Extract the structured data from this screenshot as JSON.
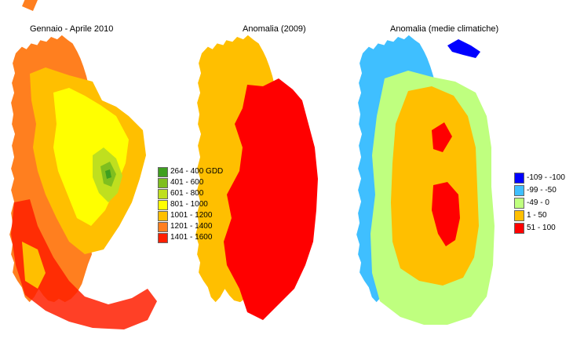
{
  "maps": [
    {
      "title": "Gennaio - Aprile 2010"
    },
    {
      "title": "Anomalia (2009)"
    },
    {
      "title": "Anomalia (medie climatiche)"
    }
  ],
  "legend_gdd": {
    "items": [
      {
        "label": "264 - 400 GDD",
        "color": "#3f9f1f"
      },
      {
        "label": "401 - 600",
        "color": "#7fbf1f"
      },
      {
        "label": "601 - 800",
        "color": "#bfdf1f"
      },
      {
        "label": "801 - 1000",
        "color": "#ffff00"
      },
      {
        "label": "1001 - 1200",
        "color": "#ffbf00"
      },
      {
        "label": "1201 - 1400",
        "color": "#ff7f1f"
      },
      {
        "label": "1401 - 1600",
        "color": "#ff1f00"
      }
    ]
  },
  "legend_anomaly": {
    "items": [
      {
        "label": "-109 - -100",
        "color": "#0000ff"
      },
      {
        "label": "-99 - -50",
        "color": "#3fbfff"
      },
      {
        "label": "-49 - 0",
        "color": "#bfff7f"
      },
      {
        "label": "1 - 50",
        "color": "#ffbf00"
      },
      {
        "label": "51 - 100",
        "color": "#ff0000"
      }
    ]
  }
}
